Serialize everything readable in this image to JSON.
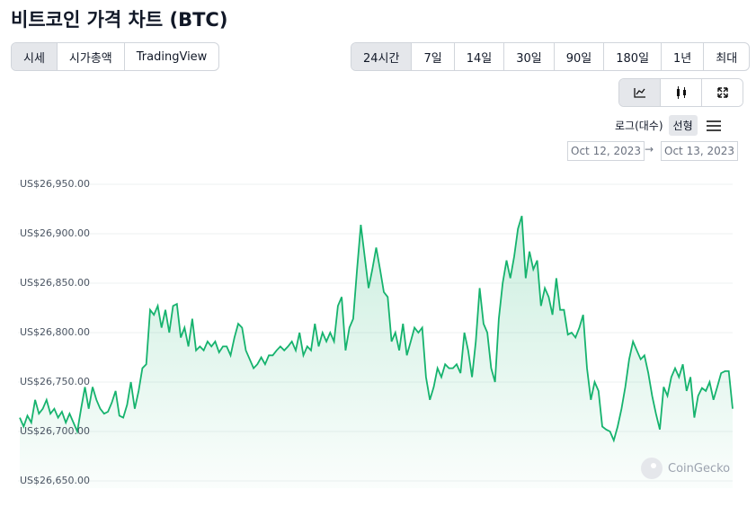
{
  "chart_data": {
    "type": "line",
    "title": "비트코인 가격 차트 (BTC)",
    "tabs": [
      "시세",
      "시가총액",
      "TradingView"
    ],
    "ranges": [
      "24시간",
      "7일",
      "14일",
      "30일",
      "90일",
      "180일",
      "1년",
      "최대"
    ],
    "scale_options": [
      "로그(대수)",
      "선형"
    ],
    "date_range": {
      "from": "Oct 12, 2023",
      "separator": "→",
      "to": "Oct 13, 2023"
    },
    "watermark": "CoinGecko",
    "color": "#16b36e",
    "grid": true,
    "ylim": [
      26650,
      26950
    ],
    "yticks": [
      {
        "value": 26650,
        "label": "US$26,650.00"
      },
      {
        "value": 26700,
        "label": "US$26,700.00"
      },
      {
        "value": 26750,
        "label": "US$26,750.00"
      },
      {
        "value": 26800,
        "label": "US$26,800.00"
      },
      {
        "value": 26850,
        "label": "US$26,850.00"
      },
      {
        "value": 26900,
        "label": "US$26,900.00"
      },
      {
        "value": 26950,
        "label": "US$26,950.00"
      }
    ],
    "values": [
      26714,
      26705,
      26716,
      26709,
      26732,
      26718,
      26723,
      26732,
      26718,
      26723,
      26714,
      26720,
      26709,
      26718,
      26709,
      26700,
      26723,
      26745,
      26723,
      26745,
      26732,
      26723,
      26718,
      26720,
      26729,
      26741,
      26716,
      26714,
      26727,
      26750,
      26723,
      26741,
      26764,
      26768,
      26823,
      26818,
      26827,
      26805,
      26823,
      26800,
      26827,
      26829,
      26795,
      26805,
      26786,
      26814,
      26782,
      26786,
      26782,
      26791,
      26786,
      26791,
      26780,
      26786,
      26786,
      26777,
      26795,
      26809,
      26805,
      26782,
      26773,
      26764,
      26768,
      26775,
      26768,
      26777,
      26777,
      26782,
      26786,
      26782,
      26786,
      26791,
      26782,
      26800,
      26777,
      26786,
      26782,
      26809,
      26786,
      26800,
      26791,
      26800,
      26791,
      26827,
      26836,
      26782,
      26805,
      26814,
      26864,
      26909,
      26877,
      26845,
      26864,
      26886,
      26864,
      26841,
      26836,
      26791,
      26800,
      26782,
      26809,
      26777,
      26791,
      26805,
      26800,
      26805,
      26755,
      26732,
      26745,
      26764,
      26755,
      26768,
      26764,
      26764,
      26768,
      26759,
      26800,
      26782,
      26755,
      26791,
      26845,
      26809,
      26800,
      26764,
      26750,
      26814,
      26850,
      26873,
      26855,
      26877,
      26905,
      26918,
      26855,
      26882,
      26864,
      26873,
      26827,
      26845,
      26836,
      26818,
      26855,
      26823,
      26823,
      26798,
      26800,
      26795,
      26805,
      26818,
      26764,
      26732,
      26750,
      26741,
      26705,
      26702,
      26700,
      26691,
      26705,
      26723,
      26745,
      26773,
      26791,
      26782,
      26773,
      26777,
      26759,
      26736,
      26718,
      26702,
      26745,
      26736,
      26755,
      26764,
      26755,
      26768,
      26741,
      26755,
      26714,
      26736,
      26744,
      26741,
      26750,
      26732,
      26745,
      26759,
      26761,
      26761,
      26723
    ]
  }
}
